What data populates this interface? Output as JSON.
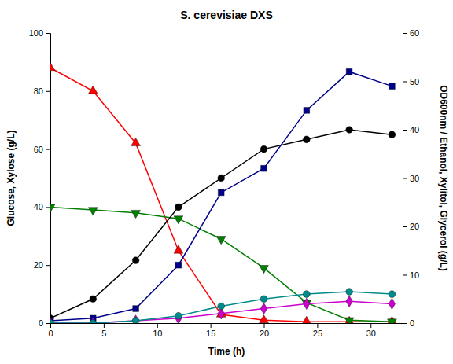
{
  "chart_data": {
    "type": "line",
    "title": "S. cerevisiae DXS",
    "xlabel": "Time (h)",
    "ylabel": "Glucose, Xylose (g/L)",
    "y2label": "OD600nm / Ethanol, Xylitol, Glycerol (g/L)",
    "x": [
      0,
      4,
      8,
      12,
      16,
      20,
      24,
      28,
      32
    ],
    "xlim": [
      0,
      33
    ],
    "xticks": [
      0,
      5,
      10,
      15,
      20,
      25,
      30
    ],
    "ylim": [
      0,
      100
    ],
    "yticks": [
      0,
      20,
      40,
      60,
      80,
      100
    ],
    "y2lim": [
      0,
      60
    ],
    "y2ticks": [
      0,
      10,
      20,
      30,
      40,
      50,
      60
    ],
    "grid": false,
    "series": [
      {
        "color": "#FF0000",
        "marker": "triangle-up",
        "values": [
          88,
          80,
          62,
          25,
          3,
          1,
          0.5,
          0.5,
          0.5
        ]
      },
      {
        "color": "#008000",
        "marker": "triangle-down",
        "values": [
          40,
          39,
          38,
          36,
          29,
          19,
          7,
          1,
          0.5
        ]
      },
      {
        "color": "#000000",
        "marker": "circle",
        "axis": "y2",
        "values": [
          1,
          5,
          13,
          24,
          30,
          36,
          38,
          40,
          39
        ]
      },
      {
        "color": "#00008B",
        "marker": "square",
        "axis": "y2",
        "values": [
          0.5,
          1,
          3,
          12,
          27,
          32,
          44,
          52,
          49
        ]
      },
      {
        "color": "#CC00CC",
        "marker": "diamond",
        "axis": "y2",
        "values": [
          0,
          0,
          0.5,
          1,
          2,
          3,
          4,
          4.5,
          4
        ]
      },
      {
        "color": "#008B8B",
        "marker": "circle",
        "axis": "y2",
        "values": [
          0,
          0,
          0.5,
          1.5,
          3.5,
          5,
          6,
          6.5,
          6
        ]
      }
    ]
  }
}
